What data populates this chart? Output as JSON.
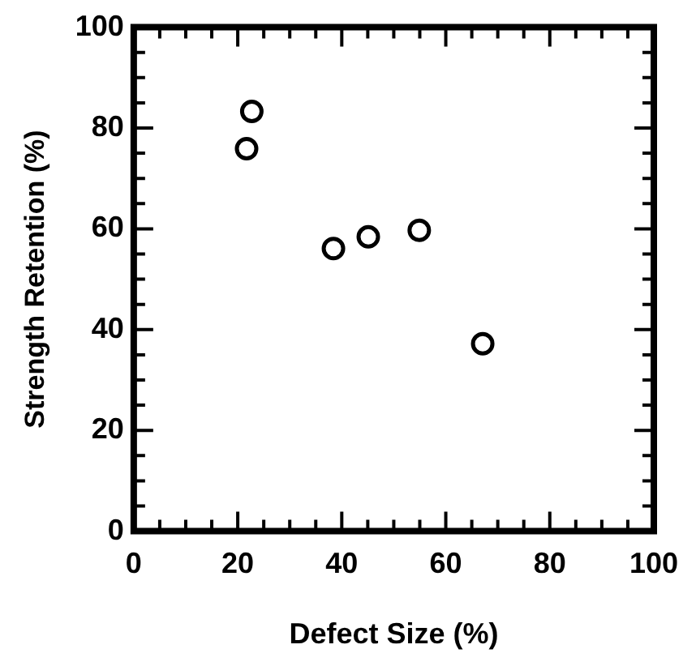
{
  "chart_data": {
    "type": "scatter",
    "xlabel": "Defect Size (%)",
    "ylabel": "Strength Retention (%)",
    "x": [
      22.7,
      21.7,
      38.4,
      45.1,
      54.9,
      67.1
    ],
    "values": [
      83.3,
      75.9,
      56.1,
      58.4,
      59.7,
      37.2
    ],
    "color": "#000000",
    "marker": "circle",
    "grid": false,
    "legend": false,
    "xlim": [
      0,
      100
    ],
    "ylim": [
      0,
      100
    ],
    "xticks": [
      0,
      {
        "value": 5,
        "label": null
      },
      {
        "value": 10,
        "label": null
      },
      {
        "value": 15,
        "label": null
      },
      20,
      {
        "value": 25,
        "label": null
      },
      {
        "value": 30,
        "label": null
      },
      {
        "value": 35,
        "label": null
      },
      40,
      {
        "value": 45,
        "label": null
      },
      {
        "value": 50,
        "label": null
      },
      {
        "value": 55,
        "label": null
      },
      60,
      {
        "value": 65,
        "label": null
      },
      {
        "value": 70,
        "label": null
      },
      {
        "value": 75,
        "label": null
      },
      80,
      {
        "value": 85,
        "label": null
      },
      {
        "value": 90,
        "label": null
      },
      {
        "value": 95,
        "label": null
      },
      100
    ],
    "yticks": [
      0,
      {
        "value": 5,
        "label": null
      },
      {
        "value": 10,
        "label": null
      },
      {
        "value": 15,
        "label": null
      },
      20,
      {
        "value": 25,
        "label": null
      },
      {
        "value": 30,
        "label": null
      },
      {
        "value": 35,
        "label": null
      },
      40,
      {
        "value": 45,
        "label": null
      },
      {
        "value": 50,
        "label": null
      },
      {
        "value": 55,
        "label": null
      },
      60,
      {
        "value": 65,
        "label": null
      },
      {
        "value": 70,
        "label": null
      },
      {
        "value": 75,
        "label": null
      },
      80,
      {
        "value": 85,
        "label": null
      },
      {
        "value": 90,
        "label": null
      },
      {
        "value": 95,
        "label": null
      },
      100
    ]
  }
}
